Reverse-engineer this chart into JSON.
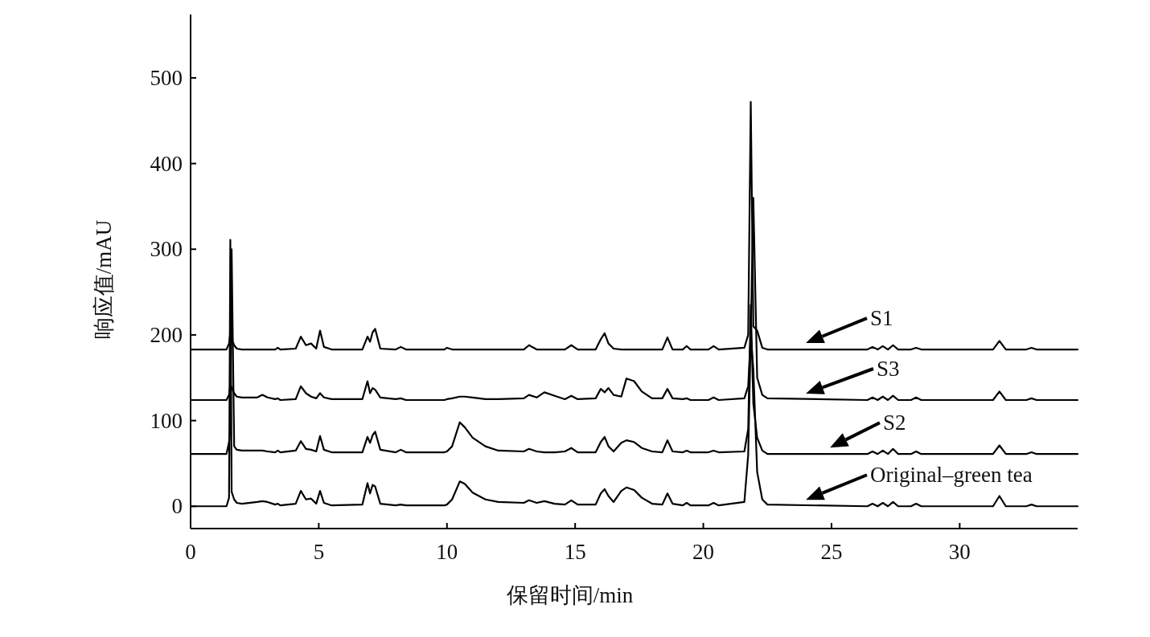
{
  "chart_data": {
    "type": "line",
    "xlabel": "保留时间/min",
    "ylabel": "响应值/mAU",
    "xlim": [
      0,
      34.6
    ],
    "ylim": [
      -26,
      574
    ],
    "xticks": [
      0,
      5,
      10,
      15,
      20,
      25,
      30
    ],
    "yticks": [
      0,
      100,
      200,
      300,
      400,
      500
    ],
    "grid": false,
    "legend": "right",
    "marker": "none",
    "line_style": "solid",
    "x": [
      0,
      1.4,
      1.5,
      1.55,
      1.6,
      1.7,
      1.8,
      2.0,
      2.6,
      2.8,
      3.0,
      3.3,
      3.4,
      3.5,
      4.1,
      4.3,
      4.5,
      4.7,
      4.9,
      5.05,
      5.2,
      5.5,
      6.7,
      6.9,
      7.0,
      7.1,
      7.2,
      7.4,
      8.0,
      8.2,
      8.4,
      9.9,
      10.0,
      10.2,
      10.5,
      10.7,
      11.0,
      11.5,
      12.0,
      13.0,
      13.2,
      13.5,
      13.8,
      14.2,
      14.6,
      14.85,
      15.1,
      15.8,
      16.0,
      16.15,
      16.3,
      16.5,
      16.8,
      17.0,
      17.3,
      17.6,
      18.0,
      18.4,
      18.6,
      18.8,
      19.2,
      19.35,
      19.5,
      20.2,
      20.4,
      20.6,
      21.6,
      21.75,
      21.85,
      21.95,
      22.1,
      22.3,
      22.5,
      26.4,
      26.6,
      26.8,
      27.0,
      27.2,
      27.4,
      27.6,
      28.1,
      28.3,
      28.5,
      31.3,
      31.55,
      31.8,
      32.6,
      32.8,
      33.0,
      34.6
    ],
    "series": [
      {
        "name": "S1",
        "color": "#000000",
        "values": [
          183,
          183,
          190,
          203,
          195,
          188,
          184,
          183,
          183,
          183,
          183,
          183,
          185,
          183,
          184,
          198,
          188,
          190,
          184,
          205,
          186,
          183,
          183,
          198,
          192,
          203,
          207,
          184,
          183,
          186,
          183,
          183,
          185,
          183,
          183,
          183,
          183,
          183,
          183,
          183,
          188,
          183,
          183,
          183,
          183,
          188,
          183,
          183,
          195,
          202,
          190,
          184,
          183,
          183,
          183,
          183,
          183,
          183,
          197,
          183,
          183,
          187,
          183,
          183,
          187,
          183,
          185,
          200,
          472,
          210,
          205,
          185,
          183,
          183,
          186,
          183,
          187,
          183,
          188,
          183,
          183,
          185,
          183,
          183,
          193,
          183,
          183,
          185,
          183,
          183
        ]
      },
      {
        "name": "S3",
        "color": "#000000",
        "values": [
          124,
          124,
          130,
          143,
          138,
          132,
          128,
          127,
          127,
          130,
          127,
          125,
          126,
          124,
          125,
          140,
          132,
          128,
          126,
          132,
          127,
          125,
          125,
          146,
          132,
          138,
          136,
          127,
          125,
          126,
          124,
          124,
          125,
          126,
          128,
          128,
          127,
          125,
          125,
          126,
          130,
          127,
          133,
          129,
          125,
          129,
          125,
          126,
          137,
          133,
          138,
          130,
          128,
          149,
          146,
          134,
          126,
          126,
          137,
          126,
          125,
          126,
          124,
          124,
          127,
          124,
          126,
          140,
          200,
          360,
          150,
          130,
          126,
          124,
          127,
          124,
          128,
          124,
          129,
          124,
          124,
          127,
          124,
          124,
          134,
          124,
          124,
          126,
          124,
          124
        ]
      },
      {
        "name": "S2",
        "color": "#000000",
        "values": [
          61,
          61,
          75,
          90,
          300,
          70,
          66,
          65,
          65,
          65,
          64,
          63,
          65,
          63,
          65,
          76,
          67,
          66,
          64,
          82,
          66,
          63,
          63,
          81,
          74,
          83,
          87,
          66,
          63,
          66,
          63,
          63,
          64,
          70,
          98,
          92,
          80,
          70,
          65,
          64,
          67,
          64,
          63,
          63,
          64,
          68,
          63,
          63,
          75,
          81,
          70,
          64,
          74,
          77,
          75,
          68,
          64,
          63,
          77,
          64,
          63,
          65,
          63,
          63,
          65,
          63,
          64,
          90,
          235,
          120,
          80,
          65,
          61,
          61,
          64,
          61,
          65,
          61,
          67,
          61,
          61,
          64,
          61,
          61,
          71,
          61,
          61,
          63,
          61,
          61
        ]
      },
      {
        "name": "Original–green tea",
        "color": "#000000",
        "values": [
          0,
          0,
          10,
          311,
          17,
          8,
          4,
          3,
          5,
          6,
          5,
          2,
          3,
          1,
          3,
          18,
          8,
          9,
          3,
          18,
          4,
          1,
          2,
          27,
          15,
          25,
          23,
          3,
          1,
          2,
          1,
          1,
          2,
          8,
          29,
          26,
          16,
          8,
          5,
          4,
          7,
          4,
          6,
          3,
          2,
          7,
          2,
          2,
          15,
          20,
          12,
          5,
          18,
          22,
          19,
          10,
          3,
          2,
          15,
          3,
          1,
          4,
          1,
          1,
          4,
          1,
          5,
          60,
          200,
          160,
          40,
          8,
          2,
          0,
          3,
          0,
          4,
          0,
          5,
          0,
          0,
          3,
          0,
          0,
          12,
          0,
          0,
          2,
          0,
          0
        ]
      }
    ]
  }
}
